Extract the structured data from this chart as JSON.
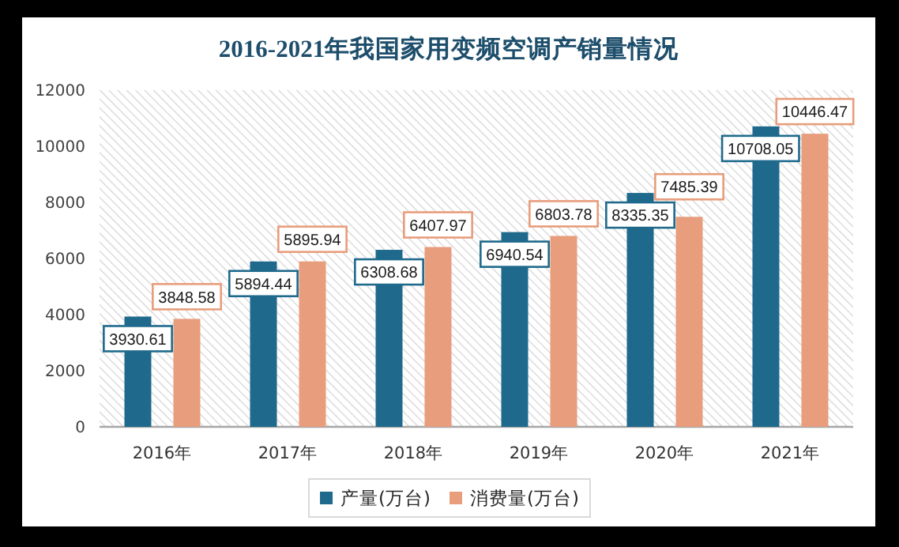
{
  "chart_data": {
    "type": "bar",
    "title": "2016-2021年我国家用变频空调产销量情况",
    "categories": [
      "2016年",
      "2017年",
      "2018年",
      "2019年",
      "2020年",
      "2021年"
    ],
    "series": [
      {
        "name": "产量(万台)",
        "color": "#1f6a8c",
        "values": [
          3930.61,
          5894.44,
          6308.68,
          6940.54,
          8335.35,
          10708.05
        ]
      },
      {
        "name": "消费量(万台)",
        "color": "#e89d7c",
        "values": [
          3848.58,
          5895.94,
          6407.97,
          6803.78,
          7485.39,
          10446.47
        ]
      }
    ],
    "ylim": [
      0,
      12000
    ],
    "yticks": [
      0,
      2000,
      4000,
      6000,
      8000,
      10000,
      12000
    ],
    "legend": "bottom",
    "data_labels": true
  }
}
